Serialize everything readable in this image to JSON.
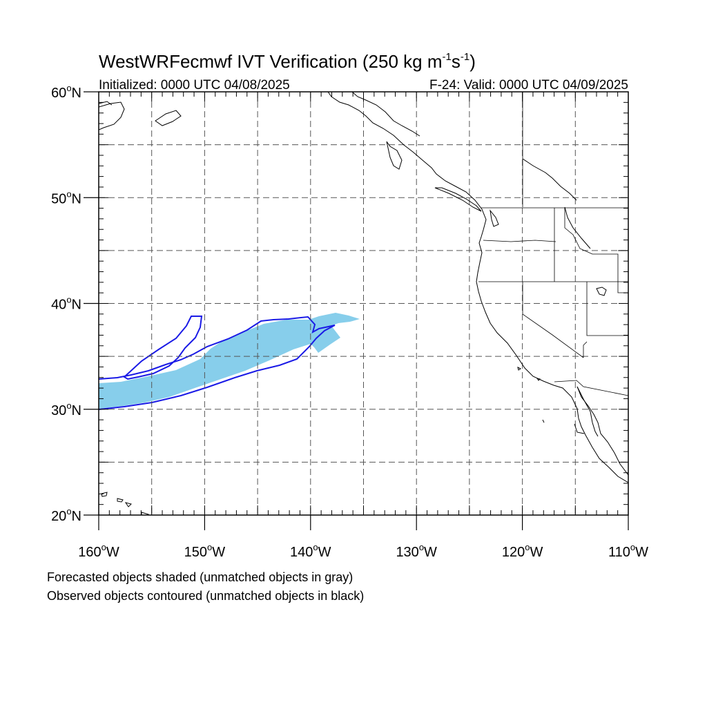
{
  "title": {
    "main": "WestWRFecmwf IVT Verification (250 kg m",
    "sup1": "-1",
    "mid": "s",
    "sup2": "-1",
    "close": ")"
  },
  "initialized": "Initialized: 0000 UTC 04/08/2025",
  "valid": "F-24: Valid: 0000 UTC 04/09/2025",
  "lat_labels": [
    {
      "lat": 60,
      "deg": "60",
      "hemi": "N"
    },
    {
      "lat": 50,
      "deg": "50",
      "hemi": "N"
    },
    {
      "lat": 40,
      "deg": "40",
      "hemi": "N"
    },
    {
      "lat": 30,
      "deg": "30",
      "hemi": "N"
    },
    {
      "lat": 20,
      "deg": "20",
      "hemi": "N"
    }
  ],
  "lon_labels": [
    {
      "lon": -160,
      "deg": "160",
      "hemi": "W"
    },
    {
      "lon": -150,
      "deg": "150",
      "hemi": "W"
    },
    {
      "lon": -140,
      "deg": "140",
      "hemi": "W"
    },
    {
      "lon": -130,
      "deg": "130",
      "hemi": "W"
    },
    {
      "lon": -120,
      "deg": "120",
      "hemi": "W"
    },
    {
      "lon": -110,
      "deg": "110",
      "hemi": "W"
    }
  ],
  "map": {
    "lon_range": [
      -160,
      -110
    ],
    "lat_range": [
      20,
      60
    ],
    "grid_lons": [
      -155,
      -150,
      -145,
      -140,
      -135,
      -130,
      -125,
      -120,
      -115
    ],
    "grid_lats": [
      25,
      30,
      35,
      40,
      45,
      50,
      55
    ],
    "colors": {
      "forecast_fill": "#87ceeb",
      "observed_contour": "#1a1ae6",
      "coast": "#000000",
      "grid": "#555555"
    }
  },
  "footer": {
    "line1": "Forecasted objects shaded (unmatched objects in gray)",
    "line2": "Observed objects contoured (unmatched objects in black)"
  }
}
